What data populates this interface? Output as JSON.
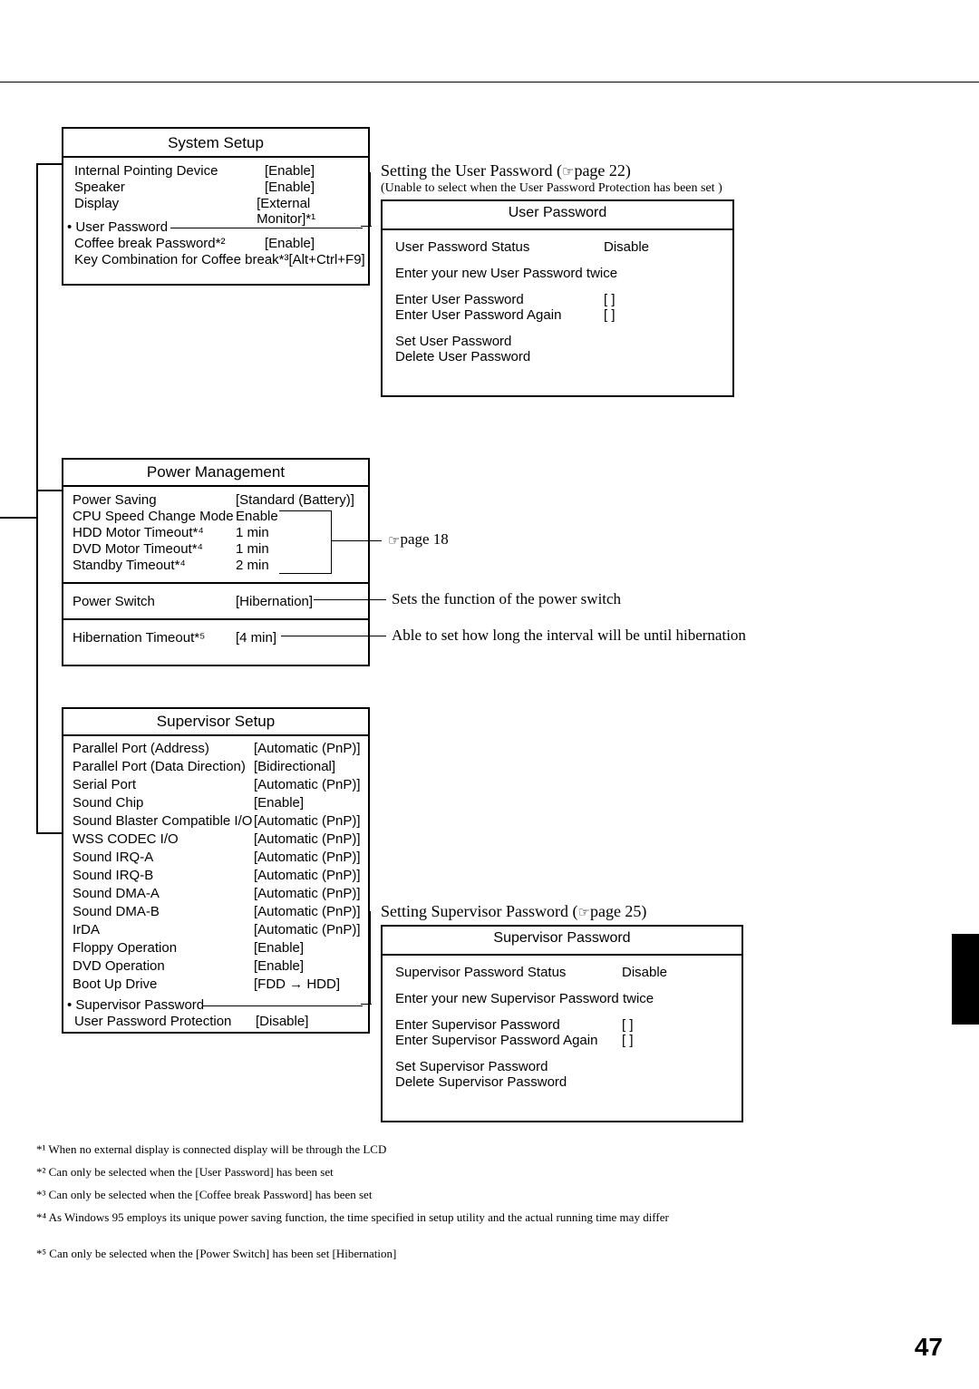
{
  "system_setup": {
    "title": "System Setup",
    "items": [
      {
        "label": "Internal Pointing Device",
        "value": "[Enable]"
      },
      {
        "label": "Speaker",
        "value": "[Enable]"
      },
      {
        "label": "Display",
        "value": "[External Monitor]*¹"
      }
    ],
    "user_password_heading": "• User Password",
    "coffee": {
      "label": "Coffee break Password*²",
      "value": "[Enable]"
    },
    "keycombo": {
      "label": "Key Combination for Coffee break*³[Alt+Ctrl+F9]"
    }
  },
  "user_password_note": {
    "line1a": "Setting the User Password (",
    "line1b": "page 22)",
    "line2": "(Unable to select when the User Password Protection has been set )"
  },
  "user_pw_box": {
    "title": "User Password",
    "status_l": "User Password Status",
    "status_v": "Disable",
    "enter_twice": "Enter your new User Password twice",
    "enter_l": "Enter User Password",
    "enter_v": "[            ]",
    "again_l": "Enter User Password Again",
    "again_v": "[            ]",
    "set": "Set User Password",
    "del": "Delete User Password"
  },
  "power_mgmt": {
    "title": "Power Management",
    "items": [
      {
        "label": "Power Saving",
        "value": "[Standard (Battery)]"
      },
      {
        "label": "CPU Speed Change Mode",
        "value": "Enable"
      },
      {
        "label": "HDD Motor Timeout*⁴",
        "value": "1 min"
      },
      {
        "label": "DVD Motor Timeout*⁴",
        "value": "1 min"
      },
      {
        "label": "Standby Timeout*⁴",
        "value": "2 min"
      }
    ],
    "power_switch_l": "Power Switch",
    "power_switch_v": "[Hibernation]",
    "hib_l": "Hibernation Timeout*⁵",
    "hib_v": "[4 min]"
  },
  "pm_annot": {
    "page18": "page 18",
    "ps": "Sets the function of the power switch",
    "hib": "Able to set how long the interval will be until hibernation"
  },
  "supervisor": {
    "title": "Supervisor Setup",
    "items": [
      {
        "label": "Parallel Port (Address)",
        "value": "[Automatic (PnP)]"
      },
      {
        "label": "Parallel Port (Data Direction)",
        "value": "[Bidirectional]"
      },
      {
        "label": "Serial Port",
        "value": "[Automatic (PnP)]"
      },
      {
        "label": "Sound Chip",
        "value": "[Enable]"
      },
      {
        "label": "Sound Blaster Compatible I/O",
        "value": "[Automatic (PnP)]"
      },
      {
        "label": "WSS CODEC I/O",
        "value": "[Automatic (PnP)]"
      },
      {
        "label": "Sound IRQ-A",
        "value": "[Automatic (PnP)]"
      },
      {
        "label": "Sound IRQ-B",
        "value": "[Automatic (PnP)]"
      },
      {
        "label": "Sound DMA-A",
        "value": "[Automatic (PnP)]"
      },
      {
        "label": "Sound DMA-B",
        "value": "[Automatic (PnP)]"
      },
      {
        "label": "IrDA",
        "value": "[Automatic (PnP)]"
      },
      {
        "label": "Floppy Operation",
        "value": "[Enable]"
      },
      {
        "label": "DVD Operation",
        "value": "[Enable]"
      },
      {
        "label": "Boot Up Drive",
        "value": "[FDD → HDD]"
      }
    ],
    "sup_pw_heading": "• Supervisor Password",
    "upp_l": "User Password Protection",
    "upp_v": "[Disable]"
  },
  "sup_annot": {
    "line_a": "Setting Supervisor Password (",
    "line_b": "page 25)"
  },
  "sup_pw_box": {
    "title": "Supervisor Password",
    "status_l": "Supervisor Password Status",
    "status_v": "Disable",
    "enter_twice": "Enter your new Supervisor Password twice",
    "enter_l": "Enter Supervisor Password",
    "enter_v": "[            ]",
    "again_l": "Enter Supervisor Password Again",
    "again_v": "[            ]",
    "set": "Set Supervisor Password",
    "del": "Delete Supervisor Password"
  },
  "footnotes": [
    "*¹ When no external display is connected display will be through the LCD",
    "*² Can only be selected when the [User Password] has been set",
    "*³ Can only be selected when the [Coffee break Password] has been set",
    "*⁴ As Windows 95 employs its unique power saving function, the time specified in setup utility and the actual running time may differ",
    "*⁵ Can only be selected when the [Power Switch] has been set [Hibernation]"
  ],
  "page_number": "47",
  "pointer_glyph": "☞"
}
